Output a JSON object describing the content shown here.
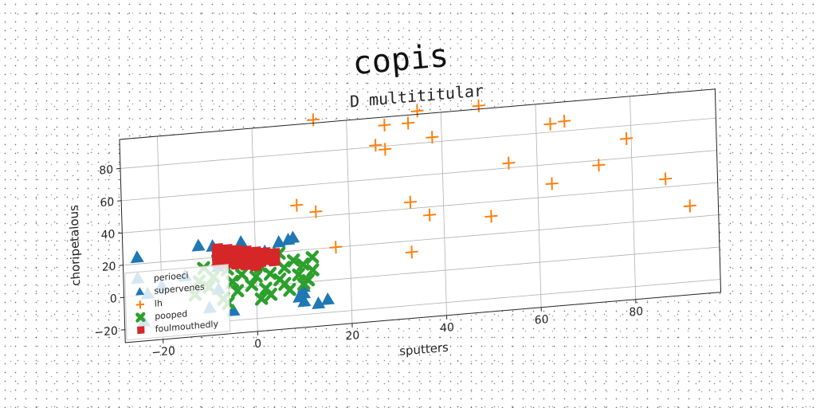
{
  "figure": {
    "suptitle": "copis"
  },
  "chart_data": {
    "type": "scatter",
    "title": "D multititular",
    "xlabel": "sputters",
    "ylabel": "choripetalous",
    "xlim": [
      -28,
      98
    ],
    "ylim": [
      -28,
      98
    ],
    "xticks": [
      -20,
      0,
      20,
      40,
      60,
      80
    ],
    "yticks": [
      -20,
      0,
      20,
      40,
      60,
      80
    ],
    "grid": true,
    "legend_position": "lower left",
    "series": [
      {
        "name": "perioeci",
        "marker": "none",
        "color": "#1f77b4",
        "points": []
      },
      {
        "name": "supervenes",
        "marker": "triangle",
        "color": "#1f77b4",
        "points": [
          [
            -25,
            24
          ],
          [
            -25,
            11
          ],
          [
            -24,
            -16
          ],
          [
            -23,
            1
          ],
          [
            -12,
            28
          ],
          [
            -9,
            27
          ],
          [
            -8,
            14
          ],
          [
            -8,
            0
          ],
          [
            -3,
            28
          ],
          [
            2,
            21
          ],
          [
            5,
            26
          ],
          [
            7,
            27
          ],
          [
            8,
            28
          ],
          [
            9,
            -9
          ],
          [
            10,
            -12
          ],
          [
            10,
            -7
          ],
          [
            10,
            -3
          ],
          [
            -10,
            -11
          ],
          [
            -5,
            -14
          ],
          [
            13,
            -14
          ],
          [
            15,
            -12
          ],
          [
            -20,
            5
          ],
          [
            -15,
            10
          ]
        ]
      },
      {
        "name": "lh",
        "marker": "plus",
        "color": "#ff7f0e",
        "points": [
          [
            13,
            100
          ],
          [
            28,
            93
          ],
          [
            33,
            93
          ],
          [
            35,
            100
          ],
          [
            48,
            100
          ],
          [
            26,
            81
          ],
          [
            28,
            78
          ],
          [
            38,
            83
          ],
          [
            63,
            85
          ],
          [
            66,
            86
          ],
          [
            54,
            63
          ],
          [
            79,
            72
          ],
          [
            73,
            57
          ],
          [
            63,
            48
          ],
          [
            87,
            45
          ],
          [
            92,
            27
          ],
          [
            9,
            48
          ],
          [
            13,
            43
          ],
          [
            17,
            20
          ],
          [
            33,
            44
          ],
          [
            37,
            35
          ],
          [
            50,
            31
          ],
          [
            33,
            13
          ]
        ]
      },
      {
        "name": "pooped",
        "marker": "x",
        "color": "#2ca02c",
        "points": [
          [
            -8,
            18
          ],
          [
            -6,
            12
          ],
          [
            -5,
            4
          ],
          [
            -4,
            -2
          ],
          [
            -3,
            8
          ],
          [
            -2,
            15
          ],
          [
            -1,
            1
          ],
          [
            0,
            6
          ],
          [
            1,
            12
          ],
          [
            2,
            -2
          ],
          [
            3,
            7
          ],
          [
            4,
            16
          ],
          [
            5,
            3
          ],
          [
            6,
            10
          ],
          [
            7,
            -4
          ],
          [
            8,
            14
          ],
          [
            9,
            5
          ],
          [
            10,
            11
          ],
          [
            11,
            1
          ],
          [
            12,
            7
          ],
          [
            -7,
            -6
          ],
          [
            -9,
            8
          ],
          [
            -10,
            2
          ],
          [
            0,
            18
          ],
          [
            5,
            19
          ],
          [
            -4,
            20
          ],
          [
            3,
            -6
          ],
          [
            10,
            -1
          ],
          [
            12,
            15
          ],
          [
            -11,
            14
          ],
          [
            -13,
            -2
          ],
          [
            -12,
            6
          ],
          [
            6,
            0
          ],
          [
            -6,
            -9
          ],
          [
            1,
            -8
          ]
        ]
      },
      {
        "name": "foulmouthedly",
        "marker": "square",
        "color": "#d62728",
        "points": [
          [
            -8,
            25
          ],
          [
            -6,
            24
          ],
          [
            -4,
            23
          ],
          [
            -2,
            22
          ],
          [
            0,
            21
          ],
          [
            2,
            20
          ],
          [
            4,
            19
          ],
          [
            -8,
            21
          ],
          [
            -6,
            20
          ],
          [
            -4,
            19
          ],
          [
            -2,
            18
          ],
          [
            0,
            17
          ],
          [
            2,
            16
          ],
          [
            4,
            15
          ],
          [
            -8,
            17
          ],
          [
            -6,
            16
          ],
          [
            -4,
            15
          ],
          [
            -2,
            14
          ],
          [
            0,
            13
          ],
          [
            -7,
            23
          ],
          [
            -5,
            22
          ],
          [
            -3,
            21
          ],
          [
            -1,
            20
          ],
          [
            1,
            19
          ],
          [
            3,
            18
          ],
          [
            -7,
            19
          ],
          [
            -5,
            18
          ],
          [
            -3,
            17
          ],
          [
            -1,
            16
          ],
          [
            1,
            15
          ]
        ]
      }
    ]
  }
}
